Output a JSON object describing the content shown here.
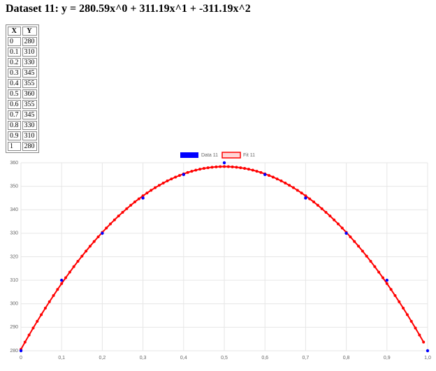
{
  "header": {
    "title": "Dataset 11: y = 280.59x^0 + 311.19x^1 + -311.19x^2"
  },
  "table": {
    "header": [
      "X",
      "Y"
    ],
    "rows": [
      [
        0,
        280
      ],
      [
        0.1,
        310
      ],
      [
        0.2,
        330
      ],
      [
        0.3,
        345
      ],
      [
        0.4,
        355
      ],
      [
        0.5,
        360
      ],
      [
        0.6,
        355
      ],
      [
        0.7,
        345
      ],
      [
        0.8,
        330
      ],
      [
        0.9,
        310
      ],
      [
        1,
        280
      ]
    ]
  },
  "chart_data": {
    "type": "scatter",
    "series": [
      {
        "name": "Data 11",
        "color": "#0000ff",
        "x": [
          0,
          0.1,
          0.2,
          0.3,
          0.4,
          0.5,
          0.6,
          0.7,
          0.8,
          0.9,
          1
        ],
        "values": [
          280,
          310,
          330,
          345,
          355,
          360,
          355,
          345,
          330,
          310,
          280
        ]
      },
      {
        "name": "Fit 11",
        "color": "#ff0000",
        "line": true,
        "x": [
          0,
          0.01,
          0.02,
          0.03,
          0.04,
          0.05,
          0.06,
          0.07,
          0.08,
          0.09,
          0.1,
          0.11,
          0.12,
          0.13,
          0.14,
          0.15,
          0.16,
          0.17,
          0.18,
          0.19,
          0.2,
          0.21,
          0.22,
          0.23,
          0.24,
          0.25,
          0.26,
          0.27,
          0.28,
          0.29,
          0.3,
          0.31,
          0.32,
          0.33,
          0.34,
          0.35,
          0.36,
          0.37,
          0.38,
          0.39,
          0.4,
          0.41,
          0.42,
          0.43,
          0.44,
          0.45,
          0.46,
          0.47,
          0.48,
          0.49,
          0.5,
          0.51,
          0.52,
          0.53,
          0.54,
          0.55,
          0.56,
          0.57,
          0.58,
          0.59,
          0.6,
          0.61,
          0.62,
          0.63,
          0.64,
          0.65,
          0.66,
          0.67,
          0.68,
          0.69,
          0.7,
          0.71,
          0.72,
          0.73,
          0.74,
          0.75,
          0.76,
          0.77,
          0.78,
          0.79,
          0.8,
          0.81,
          0.82,
          0.83,
          0.84,
          0.85,
          0.86,
          0.87,
          0.88,
          0.89,
          0.9,
          0.91,
          0.92,
          0.93,
          0.94,
          0.95,
          0.96,
          0.97,
          0.98,
          0.99
        ],
        "values": [
          280.59,
          283.67,
          286.69,
          289.65,
          292.54,
          295.37,
          298.14,
          300.85,
          303.49,
          306.08,
          308.6,
          311.06,
          313.45,
          315.79,
          318.06,
          320.27,
          322.41,
          324.5,
          326.52,
          328.48,
          330.38,
          332.22,
          333.99,
          335.7,
          337.35,
          338.94,
          340.46,
          341.93,
          343.33,
          344.66,
          345.94,
          347.15,
          348.3,
          349.39,
          350.42,
          351.39,
          352.29,
          353.13,
          353.91,
          354.62,
          355.28,
          355.87,
          356.4,
          356.86,
          357.27,
          357.61,
          357.89,
          358.11,
          358.26,
          358.36,
          358.39,
          358.36,
          358.26,
          358.11,
          357.89,
          357.61,
          357.27,
          356.86,
          356.4,
          355.87,
          355.28,
          354.62,
          353.91,
          353.13,
          352.29,
          351.39,
          350.42,
          349.39,
          348.3,
          347.15,
          345.94,
          344.66,
          343.33,
          341.93,
          340.46,
          338.94,
          337.35,
          335.7,
          333.99,
          332.22,
          330.38,
          328.48,
          326.52,
          324.5,
          322.41,
          320.27,
          318.06,
          315.79,
          313.45,
          311.06,
          308.6,
          306.08,
          303.49,
          300.85,
          298.14,
          295.37,
          292.54,
          289.65,
          286.69,
          283.67
        ]
      }
    ],
    "xlim": [
      0,
      1
    ],
    "xticks": [
      0,
      {
        "value": 0.1,
        "label": "0,1"
      },
      {
        "value": 0.2,
        "label": "0,2"
      },
      {
        "value": 0.3,
        "label": "0,3"
      },
      {
        "value": 0.4,
        "label": "0,4"
      },
      {
        "value": 0.5,
        "label": "0,5"
      },
      {
        "value": 0.6,
        "label": "0,6"
      },
      {
        "value": 0.7,
        "label": "0,7"
      },
      {
        "value": 0.8,
        "label": "0,8"
      },
      {
        "value": 0.9,
        "label": "0,9"
      },
      {
        "value": 1,
        "label": "1,0"
      }
    ],
    "ylim": [
      280,
      360
    ],
    "yticks": [
      280,
      290,
      300,
      310,
      320,
      330,
      340,
      350,
      360
    ],
    "grid": true,
    "legend": "top"
  }
}
